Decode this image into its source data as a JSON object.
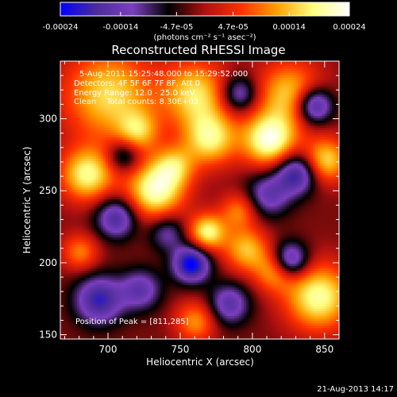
{
  "chart_data": {
    "type": "heatmap",
    "title": "Reconstructed RHESSI Image",
    "xlabel": "Heliocentric X (arcsec)",
    "ylabel": "Heliocentric Y (arcsec)",
    "x_ticks": [
      "700",
      "750",
      "800",
      "850"
    ],
    "y_ticks": [
      "150",
      "200",
      "250",
      "300"
    ],
    "xlim": [
      667,
      860
    ],
    "ylim": [
      147,
      340
    ],
    "colorbar": {
      "ticks": [
        "-0.00024",
        "-0.00014",
        "-4.7e-05",
        "4.7e-05",
        "0.00014",
        "0.00024"
      ],
      "tick_values": [
        -0.00024,
        -0.00014,
        -4.7e-05,
        4.7e-05,
        0.00014,
        0.00024
      ],
      "range": [
        -0.00024,
        0.00024
      ],
      "unit_text": "(photons cm⁻² s⁻¹ asec⁻²)",
      "colors": [
        "#0000ff",
        "#4b2c9a",
        "#7c3fbf",
        "#000000",
        "#b01010",
        "#ff3000",
        "#ffa000",
        "#ffff80",
        "#ffffff"
      ]
    },
    "annotations": [
      "5-Aug-2011 15:25:48.000 to 15:29:52.000",
      "Detectors: 4F 5F 6F 7F 8F, Att 0",
      "Energy Range: 12.0 - 25.0 keV",
      "Clean    Total counts: 8.30E+03"
    ],
    "peak_text": "Position of Peak = [811,285]",
    "peak": {
      "x": 811,
      "y": 285
    },
    "blobs": [
      {
        "x": 811,
        "y": 286,
        "s": 13,
        "a": 1.0
      },
      {
        "x": 732,
        "y": 251,
        "s": 14,
        "a": 0.95
      },
      {
        "x": 700,
        "y": 317,
        "s": 22,
        "a": 0.75
      },
      {
        "x": 685,
        "y": 262,
        "s": 13,
        "a": 0.85
      },
      {
        "x": 845,
        "y": 177,
        "s": 16,
        "a": 0.9
      },
      {
        "x": 770,
        "y": 287,
        "s": 13,
        "a": 0.8
      },
      {
        "x": 760,
        "y": 318,
        "s": 16,
        "a": 0.75
      },
      {
        "x": 825,
        "y": 318,
        "s": 16,
        "a": 0.7
      },
      {
        "x": 850,
        "y": 272,
        "s": 11,
        "a": 0.75
      },
      {
        "x": 795,
        "y": 210,
        "s": 11,
        "a": 0.65
      },
      {
        "x": 815,
        "y": 195,
        "s": 10,
        "a": 0.6
      },
      {
        "x": 768,
        "y": 222,
        "s": 9,
        "a": 0.85
      },
      {
        "x": 745,
        "y": 268,
        "s": 10,
        "a": 0.55
      },
      {
        "x": 680,
        "y": 208,
        "s": 9,
        "a": 0.5
      },
      {
        "x": 760,
        "y": 160,
        "s": 10,
        "a": 0.55
      },
      {
        "x": 720,
        "y": 292,
        "s": 10,
        "a": 0.55
      },
      {
        "x": 790,
        "y": 237,
        "s": 9,
        "a": 0.5
      },
      {
        "x": 705,
        "y": 232,
        "s": 10,
        "a": -0.7
      },
      {
        "x": 830,
        "y": 263,
        "s": 10,
        "a": -0.8
      },
      {
        "x": 842,
        "y": 310,
        "s": 9,
        "a": -0.9
      },
      {
        "x": 757,
        "y": 200,
        "s": 9,
        "a": -0.95
      },
      {
        "x": 693,
        "y": 175,
        "s": 12,
        "a": -0.75
      },
      {
        "x": 722,
        "y": 182,
        "s": 10,
        "a": -0.55
      },
      {
        "x": 810,
        "y": 248,
        "s": 11,
        "a": -0.55
      },
      {
        "x": 825,
        "y": 202,
        "s": 9,
        "a": -0.85
      },
      {
        "x": 783,
        "y": 172,
        "s": 10,
        "a": -0.6
      },
      {
        "x": 740,
        "y": 222,
        "s": 9,
        "a": -0.45
      },
      {
        "x": 790,
        "y": 318,
        "s": 9,
        "a": -0.6
      },
      {
        "x": 710,
        "y": 275,
        "s": 8,
        "a": -0.5
      }
    ],
    "floor": -0.08
  },
  "footer": {
    "timestamp": "21-Aug-2013 14:17"
  }
}
